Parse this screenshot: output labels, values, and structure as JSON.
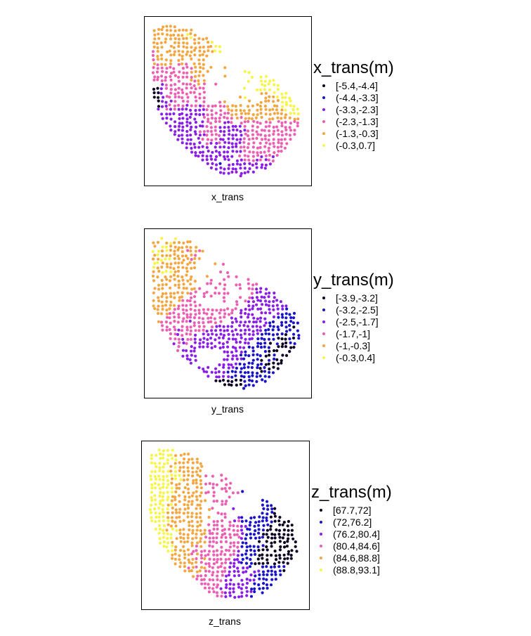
{
  "palette": {
    "black": "#0d0221",
    "blue": "#1a14c8",
    "purple": "#8a1ee8",
    "pink": "#ec5fb2",
    "orange": "#f4a640",
    "yellow": "#f5f54a"
  },
  "chart_data": [
    {
      "type": "scatter",
      "variable": "x_trans",
      "xlabel": "x_trans",
      "legend_title": "x_trans(m)",
      "legend_position": "right",
      "grid": false,
      "classes": [
        {
          "label": "[-5.4,-4.4]",
          "range": [
            -5.4,
            -4.4
          ],
          "color": "#0d0221"
        },
        {
          "label": "(-4.4,-3.3]",
          "range": [
            -4.4,
            -3.3
          ],
          "color": "#1a14c8"
        },
        {
          "label": "(-3.3,-2.3]",
          "range": [
            -3.3,
            -2.3
          ],
          "color": "#8a1ee8"
        },
        {
          "label": "(-2.3,-1.3]",
          "range": [
            -2.3,
            -1.3
          ],
          "color": "#ec5fb2"
        },
        {
          "label": "(-1.3,-0.3]",
          "range": [
            -1.3,
            -0.3
          ],
          "color": "#f4a640"
        },
        {
          "label": "(-0.3,0.7]",
          "range": [
            -0.3,
            0.7
          ],
          "color": "#f5f54a"
        }
      ]
    },
    {
      "type": "scatter",
      "variable": "y_trans",
      "xlabel": "y_trans",
      "legend_title": "y_trans(m)",
      "legend_position": "right",
      "grid": false,
      "classes": [
        {
          "label": "[-3.9,-3.2]",
          "range": [
            -3.9,
            -3.2
          ],
          "color": "#0d0221"
        },
        {
          "label": "(-3.2,-2.5]",
          "range": [
            -3.2,
            -2.5
          ],
          "color": "#1a14c8"
        },
        {
          "label": "(-2.5,-1.7]",
          "range": [
            -2.5,
            -1.7
          ],
          "color": "#8a1ee8"
        },
        {
          "label": "(-1.7,-1]",
          "range": [
            -1.7,
            -1.0
          ],
          "color": "#ec5fb2"
        },
        {
          "label": "(-1,-0.3]",
          "range": [
            -1.0,
            -0.3
          ],
          "color": "#f4a640"
        },
        {
          "label": "(-0.3,0.4]",
          "range": [
            -0.3,
            0.4
          ],
          "color": "#f5f54a"
        }
      ]
    },
    {
      "type": "scatter",
      "variable": "z_trans",
      "xlabel": "z_trans",
      "legend_title": "z_trans(m)",
      "legend_position": "right",
      "grid": false,
      "classes": [
        {
          "label": "[67.7,72]",
          "range": [
            67.7,
            72
          ],
          "color": "#0d0221"
        },
        {
          "label": "(72,76.2]",
          "range": [
            72,
            76.2
          ],
          "color": "#1a14c8"
        },
        {
          "label": "(76.2,80.4]",
          "range": [
            76.2,
            80.4
          ],
          "color": "#8a1ee8"
        },
        {
          "label": "(80.4,84.6]",
          "range": [
            80.4,
            84.6
          ],
          "color": "#ec5fb2"
        },
        {
          "label": "(84.6,88.8]",
          "range": [
            84.6,
            88.8
          ],
          "color": "#f4a640"
        },
        {
          "label": "(88.8,93.1]",
          "range": [
            88.8,
            93.1
          ],
          "color": "#f5f54a"
        }
      ]
    }
  ]
}
